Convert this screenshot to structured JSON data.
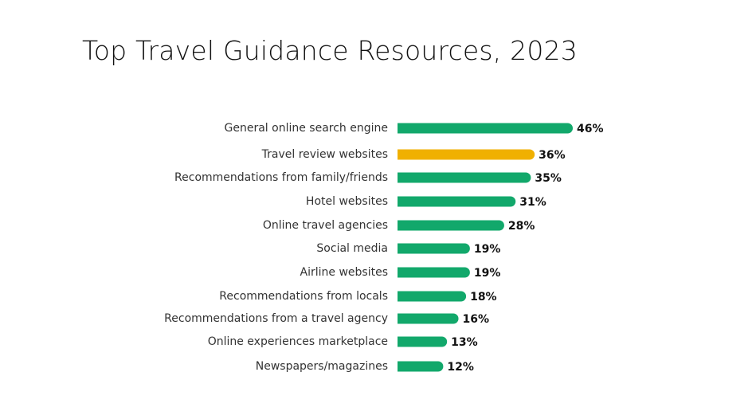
{
  "chart_data": {
    "type": "bar",
    "orientation": "horizontal",
    "title": "Top Travel Guidance Resources, 2023",
    "categories": [
      "General online search engine",
      "Travel review websites",
      "Recommendations from family/friends",
      "Hotel websites",
      "Online travel agencies",
      "Social media",
      "Airline websites",
      "Recommendations from locals",
      "Recommendations from a travel agency",
      "Online experiences marketplace",
      "Newspapers/magazines"
    ],
    "values": [
      46,
      36,
      35,
      31,
      28,
      19,
      19,
      18,
      16,
      13,
      12
    ],
    "value_labels": [
      "46%",
      "36%",
      "35%",
      "31%",
      "28%",
      "19%",
      "19%",
      "18%",
      "16%",
      "13%",
      "12%"
    ],
    "unit": "%",
    "xlim": [
      0,
      46
    ],
    "grid": false,
    "legend": "none",
    "colors": {
      "default": "#12a86b",
      "highlight": "#f0b000"
    },
    "highlight_index": 1
  }
}
